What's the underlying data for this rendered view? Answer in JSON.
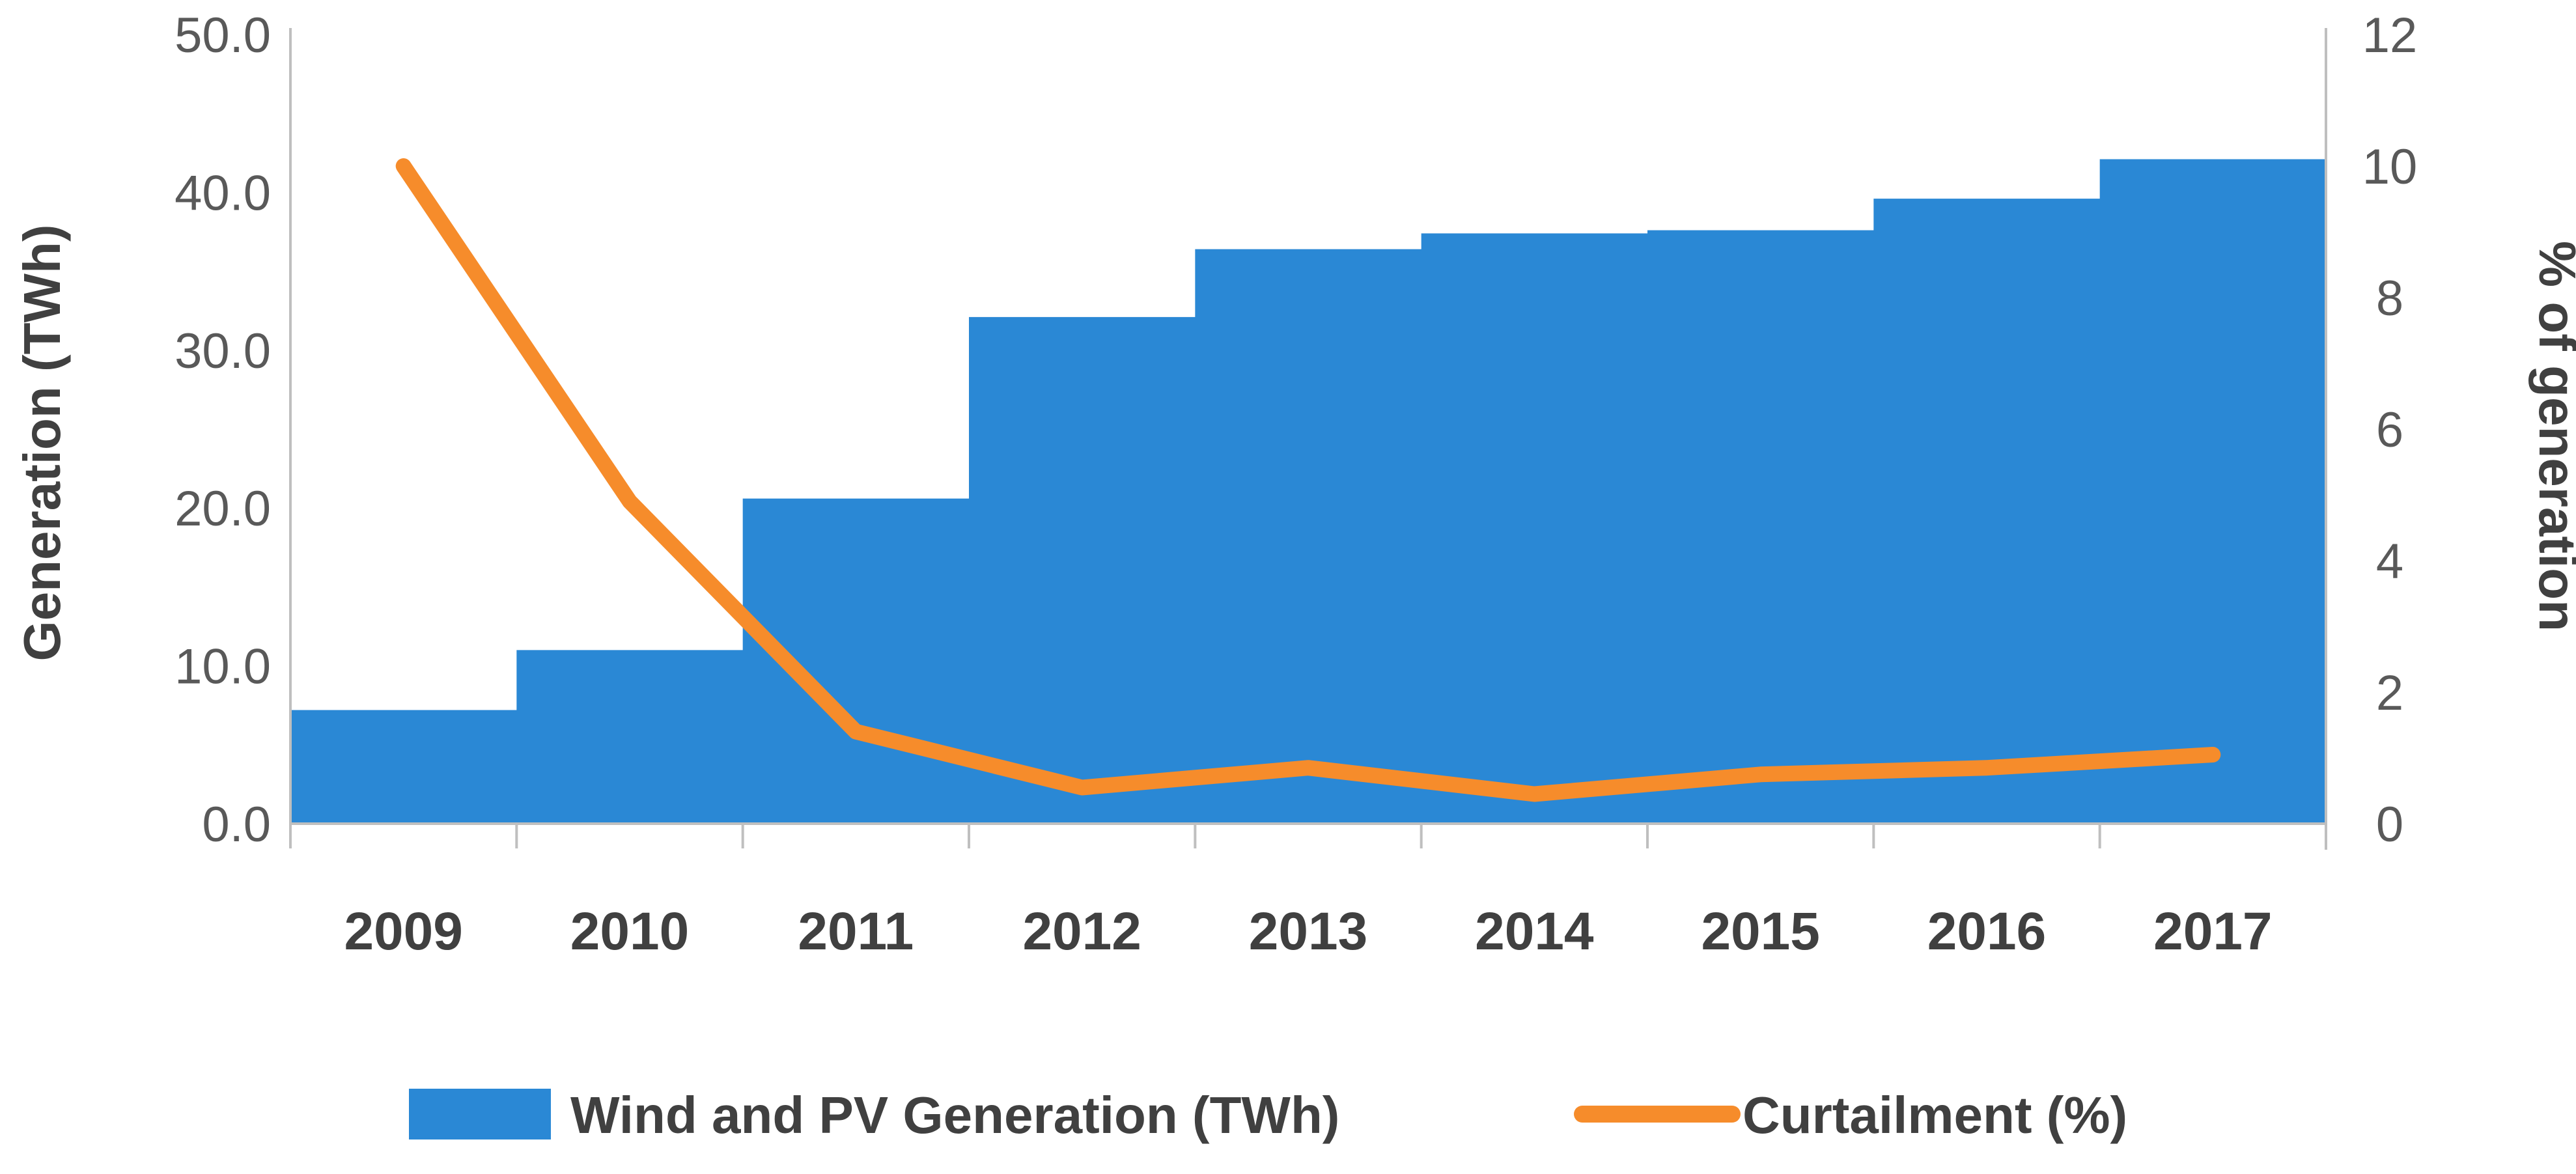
{
  "chart_data": {
    "type": "bar",
    "categories": [
      "2009",
      "2010",
      "2011",
      "2012",
      "2013",
      "2014",
      "2015",
      "2016",
      "2017"
    ],
    "series": [
      {
        "name": "Wind and PV Generation (TWh)",
        "kind": "bar",
        "axis": "left",
        "color": "#2a88d5",
        "values": [
          7.2,
          11.0,
          20.6,
          32.1,
          36.4,
          37.4,
          37.6,
          39.6,
          42.1
        ]
      },
      {
        "name": "Curtailment (%)",
        "kind": "line",
        "axis": "right",
        "color": "#f68c2b",
        "values": [
          10.0,
          4.9,
          1.4,
          0.55,
          0.85,
          0.45,
          0.75,
          0.85,
          1.05
        ]
      }
    ],
    "ylabel": "Generation (TWh)",
    "ylabel_right": "% of generation",
    "ylim": [
      0,
      50
    ],
    "ylim_right": [
      0,
      12
    ],
    "yticks": [
      "0.0",
      "10.0",
      "20.0",
      "30.0",
      "40.0",
      "50.0"
    ],
    "yticks_right": [
      "0",
      "2",
      "4",
      "6",
      "8",
      "10",
      "12"
    ],
    "legend_position": "bottom",
    "title": "",
    "xlabel": ""
  }
}
